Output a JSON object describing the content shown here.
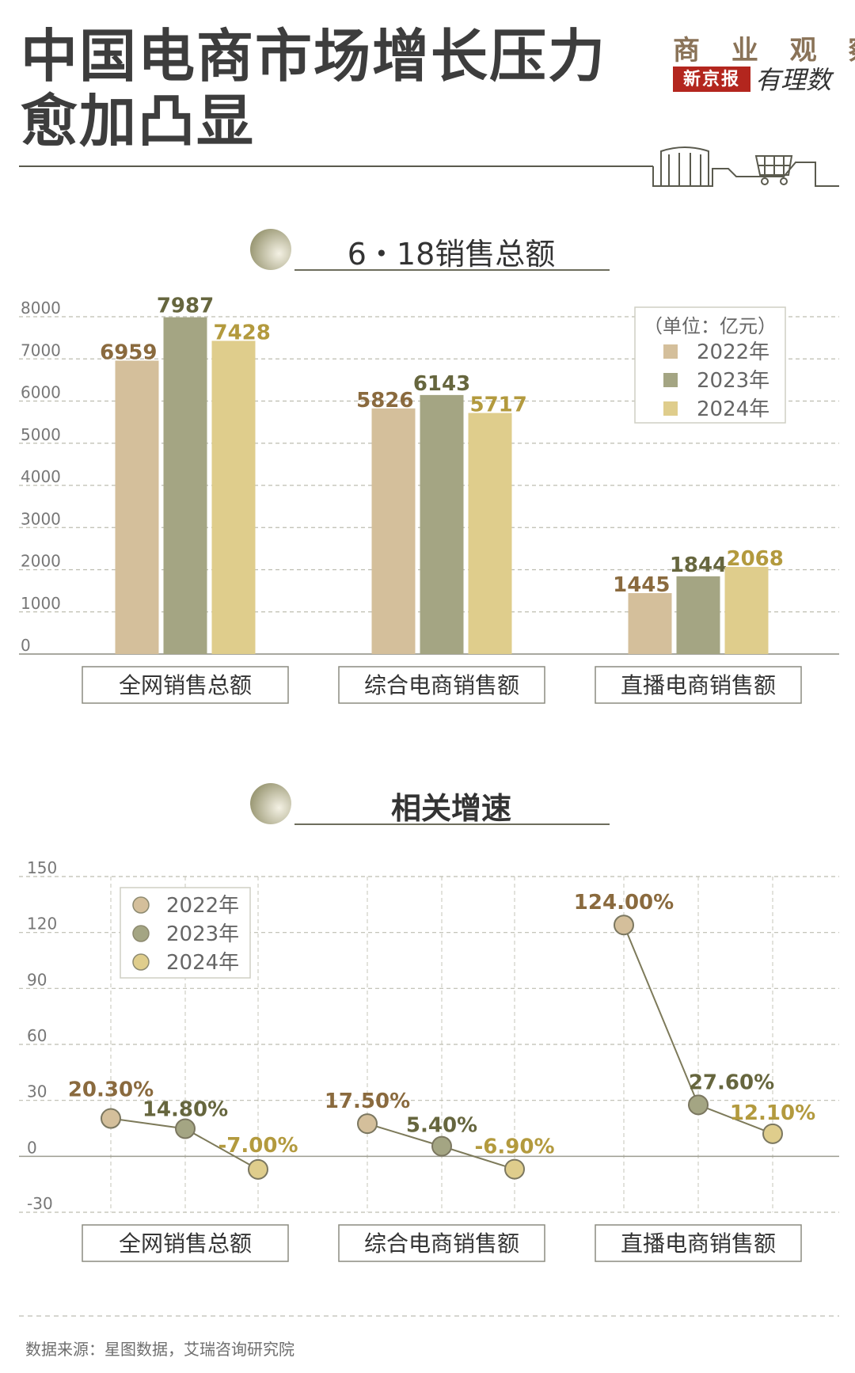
{
  "header": {
    "title_line1": "中国电商市场增长压力",
    "title_line2": "愈加凸显",
    "brand_top": "商 业 观 察",
    "brand_box": "新京报",
    "brand_hand": "有理数"
  },
  "colors": {
    "y2022": "#d4bf9b",
    "y2023": "#a4a583",
    "y2024": "#dfcd8c",
    "label2022": "#8a6a3e",
    "label2023": "#66663e",
    "label2024": "#b39a3e",
    "line": "#7d7a5a"
  },
  "chart_data": [
    {
      "type": "bar",
      "title": "6・18销售总额",
      "unit": "（单位：亿元）",
      "categories": [
        "全网销售总额",
        "综合电商销售额",
        "直播电商销售额"
      ],
      "series": [
        {
          "name": "2022年",
          "values": [
            6959,
            5826,
            1445
          ]
        },
        {
          "name": "2023年",
          "values": [
            7987,
            6143,
            1844
          ]
        },
        {
          "name": "2024年",
          "values": [
            7428,
            5717,
            2068
          ]
        }
      ],
      "ylim": [
        0,
        8000
      ],
      "yticks": [
        0,
        1000,
        2000,
        3000,
        4000,
        5000,
        6000,
        7000,
        8000
      ],
      "grid": true,
      "legend_position": "top-right"
    },
    {
      "type": "line",
      "title": "相关增速",
      "categories": [
        "全网销售总额",
        "综合电商销售额",
        "直播电商销售额"
      ],
      "series": [
        {
          "name": "2022年",
          "values": [
            20.3,
            17.5,
            124.0
          ],
          "labels": [
            "20.30%",
            "17.50%",
            "124.00%"
          ]
        },
        {
          "name": "2023年",
          "values": [
            14.8,
            5.4,
            27.6
          ],
          "labels": [
            "14.80%",
            "5.40%",
            "27.60%"
          ]
        },
        {
          "name": "2024年",
          "values": [
            -7.0,
            -6.9,
            12.1
          ],
          "labels": [
            "-7.00%",
            "-6.90%",
            "12.10%"
          ]
        }
      ],
      "ylim": [
        -30,
        150
      ],
      "yticks": [
        -30,
        0,
        30,
        60,
        90,
        120,
        150
      ],
      "grid": true,
      "legend_position": "top-left"
    }
  ],
  "footer": {
    "source": "数据来源：星图数据，艾瑞咨询研究院"
  }
}
